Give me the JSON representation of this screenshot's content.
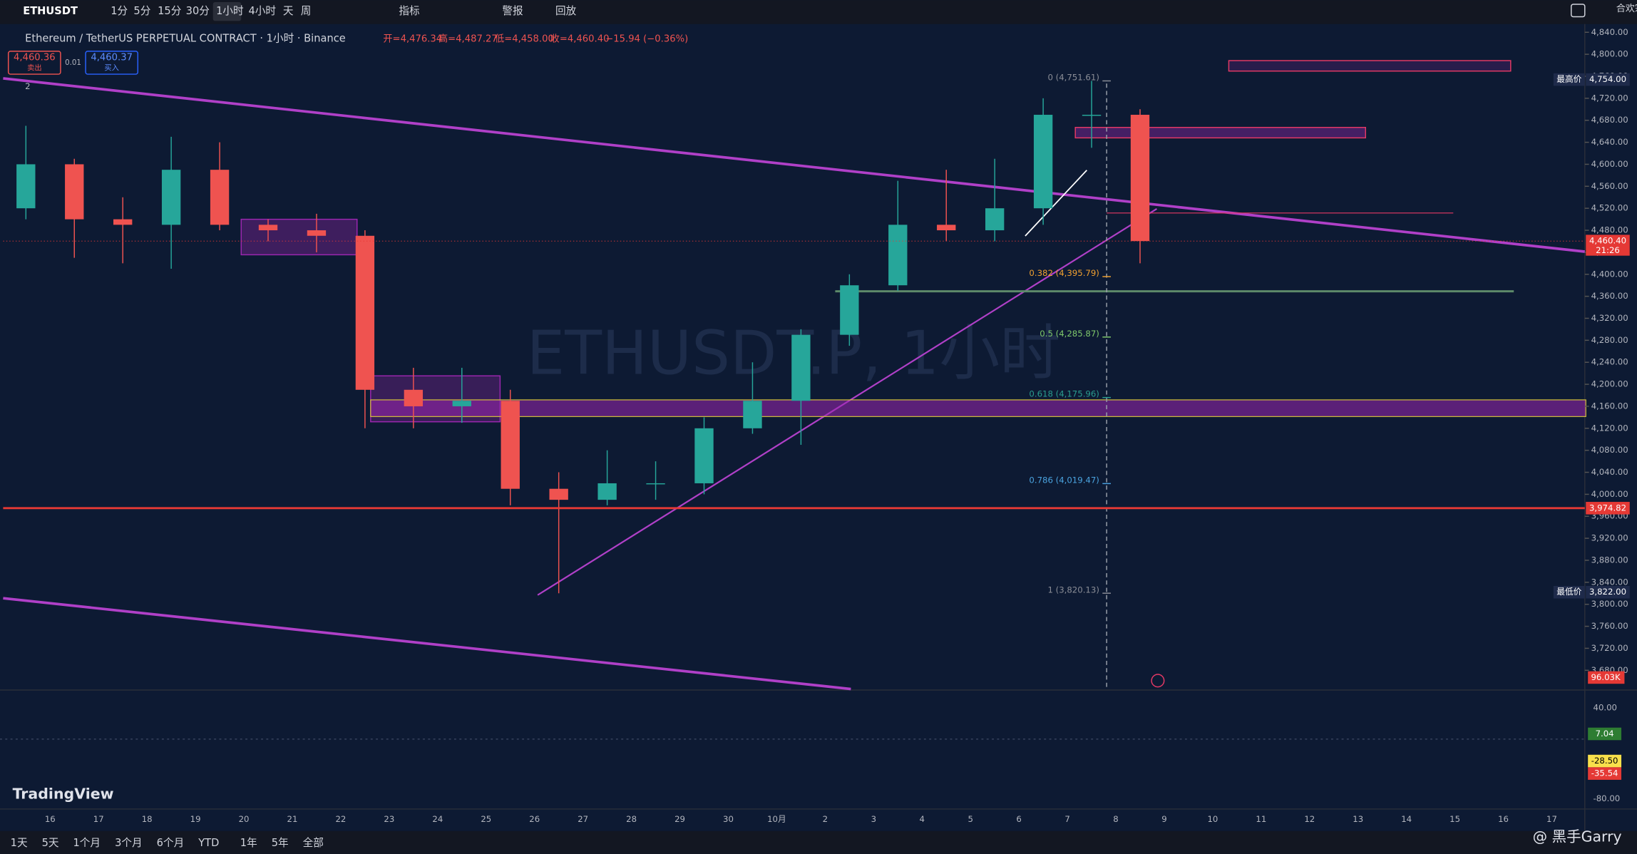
{
  "toolbar": {
    "symbol": "ETHUSDT",
    "intervals": [
      "1分",
      "5分",
      "15分",
      "30分",
      "1小时",
      "4小时",
      "天",
      "周"
    ],
    "indicators": "指标",
    "alerts": "警报",
    "replay": "回放",
    "user": "合欢宗主"
  },
  "header": {
    "title": "Ethereum / TetherUS PERPETUAL CONTRACT · 1小时 · Binance",
    "open": "开=4,476.34",
    "high": "高=4,487.27",
    "low": "低=4,458.00",
    "close": "收=4,460.40",
    "change": "−15.94 (−0.36%)",
    "sell_price": "4,460.36",
    "sell": "卖出",
    "spread": "0.01",
    "buy_price": "4,460.37",
    "buy": "买入",
    "collapse": "2"
  },
  "watermark": "ETHUSDT.P, 1小时",
  "chart_data": {
    "type": "candlestick",
    "categories": [
      null,
      "16",
      "17",
      "18",
      "19",
      "20",
      "21",
      "22",
      "23",
      "24",
      "25",
      "26",
      "27",
      "28",
      "29",
      "30",
      "10月",
      "2",
      "3",
      "4",
      "5",
      "6",
      "7",
      "8"
    ],
    "future_labels": [
      "9",
      "10",
      "11",
      "12",
      "13",
      "14",
      "15",
      "16",
      "17"
    ],
    "open": [
      4520,
      4600,
      4500,
      4490,
      4590,
      4490,
      4480,
      4470,
      4190,
      4160,
      4170,
      4010,
      3990,
      4020,
      4020,
      4120,
      4170,
      4290,
      4380,
      4490,
      4480,
      4520,
      4690,
      4690
    ],
    "high": [
      4670,
      4610,
      4540,
      4650,
      4640,
      4500,
      4510,
      4480,
      4230,
      4230,
      4190,
      4040,
      4080,
      4060,
      4140,
      4240,
      4300,
      4400,
      4570,
      4590,
      4610,
      4720,
      4751.61,
      4700
    ],
    "low": [
      4500,
      4430,
      4420,
      4410,
      4480,
      4460,
      4440,
      4120,
      4120,
      4130,
      3980,
      3820,
      3980,
      3990,
      4000,
      4110,
      4090,
      4270,
      4370,
      4460,
      4460,
      4490,
      4630,
      4420
    ],
    "close": [
      4600,
      4500,
      4490,
      4590,
      4490,
      4480,
      4470,
      4190,
      4160,
      4170,
      4010,
      3990,
      4020,
      4020,
      4120,
      4170,
      4290,
      4380,
      4490,
      4480,
      4520,
      4690,
      4690,
      4460.4
    ],
    "up_color": "#26a69a",
    "down_color": "#ef5350",
    "ylim": [
      3646,
      4853
    ],
    "yticks": [
      {
        "value": 3680,
        "label": "3,680.00"
      },
      {
        "value": 3720,
        "label": "3,720.00"
      },
      {
        "value": 3760,
        "label": "3,760.00"
      },
      {
        "value": 3800,
        "label": "3,800.00"
      },
      {
        "value": 3840,
        "label": "3,840.00"
      },
      {
        "value": 3880,
        "label": "3,880.00"
      },
      {
        "value": 3920,
        "label": "3,920.00"
      },
      {
        "value": 3960,
        "label": "3,960.00"
      },
      {
        "value": 4000,
        "label": "4,000.00"
      },
      {
        "value": 4040,
        "label": "4,040.00"
      },
      {
        "value": 4080,
        "label": "4,080.00"
      },
      {
        "value": 4120,
        "label": "4,120.00"
      },
      {
        "value": 4160,
        "label": "4,160.00"
      },
      {
        "value": 4200,
        "label": "4,200.00"
      },
      {
        "value": 4240,
        "label": "4,240.00"
      },
      {
        "value": 4280,
        "label": "4,280.00"
      },
      {
        "value": 4320,
        "label": "4,320.00"
      },
      {
        "value": 4360,
        "label": "4,360.00"
      },
      {
        "value": 4400,
        "label": "4,400.00"
      },
      {
        "value": 4440,
        "label": "4,440.00"
      },
      {
        "value": 4480,
        "label": "4,480.00"
      },
      {
        "value": 4520,
        "label": "4,520.00"
      },
      {
        "value": 4560,
        "label": "4,560.00"
      },
      {
        "value": 4600,
        "label": "4,600.00"
      },
      {
        "value": 4640,
        "label": "4,640.00"
      },
      {
        "value": 4680,
        "label": "4,680.00"
      },
      {
        "value": 4720,
        "label": "4,720.00"
      },
      {
        "value": 4760,
        "label": "4,760.00"
      },
      {
        "value": 4800,
        "label": "4,800.00"
      },
      {
        "value": 4840,
        "label": "4,840.00"
      }
    ],
    "fib": [
      {
        "value": 4751.61,
        "label": "0 (4,751.61)",
        "color": "#8a8d96"
      },
      {
        "value": 4395.79,
        "label": "0.382 (4,395.79)",
        "color": "#f0a030"
      },
      {
        "value": 4285.87,
        "label": "0.5 (4,285.87)",
        "color": "#7fc96b"
      },
      {
        "value": 4175.96,
        "label": "0.618 (4,175.96)",
        "color": "#2a9d8f"
      },
      {
        "value": 4019.47,
        "label": "0.786 (4,019.47)",
        "color": "#4aa3df"
      },
      {
        "value": 3820.13,
        "label": "1 (3,820.13)",
        "color": "#8a8d96"
      }
    ],
    "price_labels": [
      {
        "value": 4754,
        "label": "4,754.00",
        "tag": "最高价",
        "color": "#1e2a4a"
      },
      {
        "value": 4460.4,
        "label": "4,460.40",
        "tag": "21:26",
        "color": "#e53935"
      },
      {
        "value": 3974.82,
        "label": "3,974.82",
        "color": "#e53935"
      },
      {
        "value": 3822,
        "label": "3,822.00",
        "tag": "最低价",
        "color": "#1e2a4a"
      }
    ],
    "volume_label": "96.03K",
    "macd_ticks": [
      "40.00",
      "-80.00"
    ],
    "macd_labels": [
      {
        "label": "7.04",
        "color": "#2e7d32"
      },
      {
        "label": "-28.50",
        "color": "#f9e04b"
      },
      {
        "label": "-35.54",
        "color": "#e53935"
      }
    ]
  },
  "bottom_bar": {
    "ranges": [
      "1天",
      "5天",
      "1个月",
      "3个月",
      "6个月",
      "YTD",
      "1年",
      "5年",
      "全部"
    ]
  },
  "logo": "TradingView",
  "credit": "@ 黑手Garry"
}
